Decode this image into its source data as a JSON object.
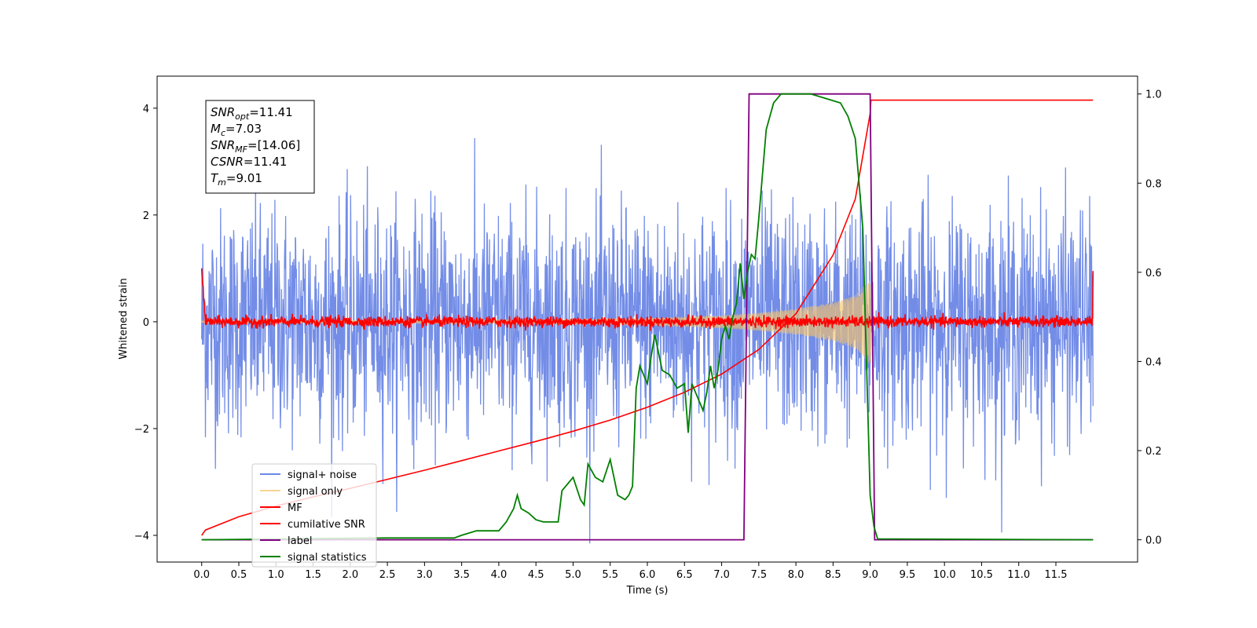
{
  "chart_data": {
    "type": "line",
    "xlabel": "Time (s)",
    "ylabel_left": "Whitened strain",
    "ylabel_right": "",
    "xlim": [
      -0.6,
      12.6
    ],
    "ylim_left": [
      -4.5,
      4.6
    ],
    "ylim_right": [
      -0.05,
      1.04
    ],
    "x_ticks": [
      "0.0",
      "0.5",
      "1.0",
      "1.5",
      "2.0",
      "2.5",
      "3.0",
      "3.5",
      "4.0",
      "4.5",
      "5.0",
      "5.5",
      "6.0",
      "6.5",
      "7.0",
      "7.5",
      "8.0",
      "8.5",
      "9.0",
      "9.5",
      "10.0",
      "10.5",
      "11.0",
      "11.5"
    ],
    "y_ticks_left": [
      "4",
      "2",
      "0",
      "−2",
      "−4"
    ],
    "y_ticks_right": [
      "1.0",
      "0.8",
      "0.6",
      "0.4",
      "0.2",
      "0.0"
    ],
    "grid": false,
    "legend_position": "lower-left",
    "annotation": {
      "lines": [
        {
          "main": "SNR",
          "sub": "opt",
          "rest": "=11.41"
        },
        {
          "main": "M",
          "sub": "c",
          "rest": "=7.03"
        },
        {
          "main": "SNR",
          "sub": "MF",
          "rest": "=[14.06]"
        },
        {
          "main": "CSNR",
          "sub": "",
          "rest": "=11.41"
        },
        {
          "main": "T",
          "sub": "m",
          "rest": "=9.01"
        }
      ]
    },
    "series": [
      {
        "name": "signal+ noise",
        "color": "#6b87e6",
        "axis": "left",
        "kind": "noisy",
        "x_range": [
          0,
          12.0
        ],
        "amplitude_std": 1.05,
        "peak_abs": 4.15
      },
      {
        "name": "signal only",
        "color": "#f4c36b",
        "axis": "left",
        "kind": "chirp",
        "x_range": [
          0,
          9.01
        ],
        "envelope": [
          [
            0,
            0.02
          ],
          [
            4,
            0.04
          ],
          [
            6,
            0.07
          ],
          [
            7,
            0.12
          ],
          [
            7.5,
            0.17
          ],
          [
            8,
            0.24
          ],
          [
            8.5,
            0.36
          ],
          [
            8.8,
            0.5
          ],
          [
            9.0,
            0.8
          ]
        ]
      },
      {
        "name": "MF",
        "color": "#ff0000",
        "axis": "left",
        "kind": "noisy",
        "x_range": [
          0,
          12.0
        ],
        "amplitude_std": 0.05,
        "start_value": 1.0,
        "end_value": 0.95
      },
      {
        "name": "cumilative SNR",
        "color": "#ff0000",
        "axis": "left",
        "x": [
          0,
          0.05,
          0.5,
          1,
          1.5,
          2,
          2.5,
          3,
          3.5,
          4,
          4.5,
          5,
          5.5,
          6,
          6.5,
          7,
          7.5,
          8,
          8.5,
          8.8,
          9.0,
          9.01,
          12.0
        ],
        "y": [
          -4.0,
          -3.9,
          -3.65,
          -3.45,
          -3.28,
          -3.12,
          -2.95,
          -2.78,
          -2.6,
          -2.42,
          -2.24,
          -2.05,
          -1.84,
          -1.6,
          -1.32,
          -0.98,
          -0.52,
          0.15,
          1.25,
          2.3,
          3.9,
          4.15,
          4.15
        ]
      },
      {
        "name": "label",
        "color": "#800080",
        "axis": "right",
        "x": [
          0,
          7.3,
          7.37,
          9.0,
          9.06,
          12.0
        ],
        "y": [
          0,
          0,
          1,
          1,
          0,
          0
        ]
      },
      {
        "name": "signal statistics",
        "color": "#008000",
        "axis": "right",
        "x": [
          0,
          2.5,
          3.4,
          3.5,
          3.7,
          4.0,
          4.1,
          4.2,
          4.25,
          4.3,
          4.4,
          4.5,
          4.6,
          4.8,
          4.85,
          4.9,
          5.0,
          5.1,
          5.15,
          5.2,
          5.3,
          5.4,
          5.5,
          5.55,
          5.6,
          5.7,
          5.75,
          5.8,
          5.85,
          5.9,
          6.0,
          6.05,
          6.1,
          6.2,
          6.3,
          6.4,
          6.5,
          6.55,
          6.6,
          6.7,
          6.75,
          6.8,
          6.85,
          6.9,
          6.95,
          7.0,
          7.05,
          7.1,
          7.15,
          7.2,
          7.25,
          7.3,
          7.35,
          7.4,
          7.45,
          7.5,
          7.6,
          7.7,
          7.8,
          8.0,
          8.2,
          8.4,
          8.6,
          8.7,
          8.8,
          8.9,
          8.95,
          9.0,
          9.05,
          9.1,
          12.0
        ],
        "y": [
          0,
          0.004,
          0.004,
          0.01,
          0.02,
          0.02,
          0.04,
          0.07,
          0.1,
          0.07,
          0.06,
          0.045,
          0.04,
          0.04,
          0.11,
          0.12,
          0.14,
          0.09,
          0.078,
          0.17,
          0.14,
          0.13,
          0.18,
          0.14,
          0.1,
          0.09,
          0.1,
          0.12,
          0.34,
          0.39,
          0.35,
          0.41,
          0.46,
          0.38,
          0.37,
          0.34,
          0.35,
          0.24,
          0.35,
          0.31,
          0.29,
          0.33,
          0.39,
          0.34,
          0.38,
          0.45,
          0.48,
          0.45,
          0.5,
          0.53,
          0.62,
          0.54,
          0.6,
          0.64,
          0.63,
          0.72,
          0.92,
          0.98,
          1.0,
          1.0,
          1.0,
          0.99,
          0.98,
          0.95,
          0.9,
          0.7,
          0.4,
          0.1,
          0.03,
          0.002,
          0.0
        ]
      }
    ]
  }
}
